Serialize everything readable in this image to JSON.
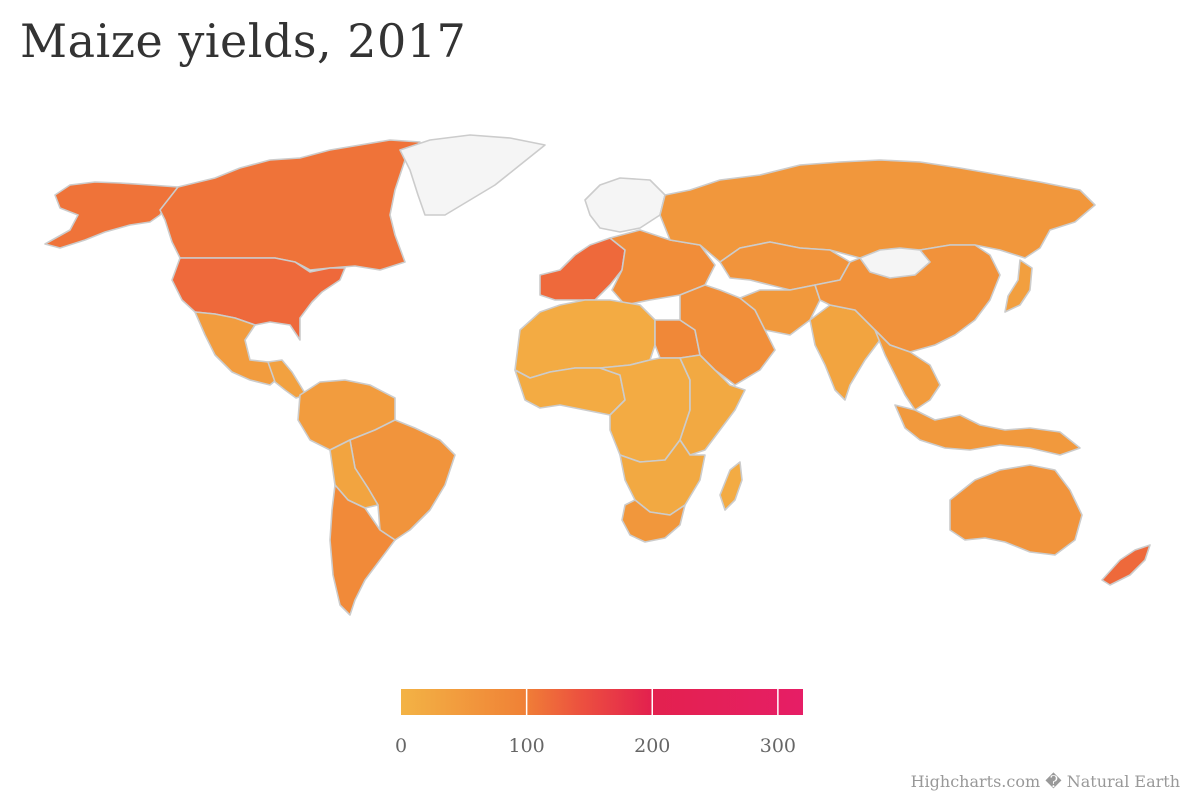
{
  "title": "Maize yields, 2017",
  "colors": {
    "no_data": "#f5f5f5",
    "border": "#cccccc",
    "scale": [
      "#f3b345",
      "#f08236",
      "#ec503f",
      "#e3214e",
      "#e61e66"
    ]
  },
  "legend": {
    "min": 0,
    "max": 320,
    "ticks": [
      {
        "value": 0,
        "label": "0"
      },
      {
        "value": 100,
        "label": "100"
      },
      {
        "value": 200,
        "label": "200"
      },
      {
        "value": 300,
        "label": "300"
      }
    ]
  },
  "regions": [
    {
      "id": "alaska",
      "value": 110
    },
    {
      "id": "canada",
      "value": 110
    },
    {
      "id": "usa",
      "value": 120
    },
    {
      "id": "greenland",
      "value": null
    },
    {
      "id": "mexico",
      "value": 45
    },
    {
      "id": "central-america",
      "value": 35
    },
    {
      "id": "south-america-north",
      "value": 45
    },
    {
      "id": "brazil",
      "value": 60
    },
    {
      "id": "bolivia-paraguay",
      "value": 30
    },
    {
      "id": "argentina-chile",
      "value": 80
    },
    {
      "id": "western-europe",
      "value": 120
    },
    {
      "id": "eastern-europe",
      "value": 75
    },
    {
      "id": "scandinavia",
      "value": null
    },
    {
      "id": "russia",
      "value": 55
    },
    {
      "id": "north-africa",
      "value": 15
    },
    {
      "id": "egypt",
      "value": 85
    },
    {
      "id": "west-africa",
      "value": 15
    },
    {
      "id": "central-africa",
      "value": 15
    },
    {
      "id": "east-africa",
      "value": 20
    },
    {
      "id": "southern-africa",
      "value": 20
    },
    {
      "id": "south-africa",
      "value": 55
    },
    {
      "id": "madagascar",
      "value": 15
    },
    {
      "id": "middle-east",
      "value": 70
    },
    {
      "id": "central-asia",
      "value": 60
    },
    {
      "id": "iran-afghanistan",
      "value": 50
    },
    {
      "id": "india",
      "value": 30
    },
    {
      "id": "china",
      "value": 65
    },
    {
      "id": "mongolia",
      "value": null
    },
    {
      "id": "southeast-asia",
      "value": 45
    },
    {
      "id": "japan",
      "value": 40
    },
    {
      "id": "indonesia",
      "value": 50
    },
    {
      "id": "australia",
      "value": 60
    },
    {
      "id": "new-zealand",
      "value": 120
    }
  ],
  "credits": "Highcharts.com � Natural Earth"
}
